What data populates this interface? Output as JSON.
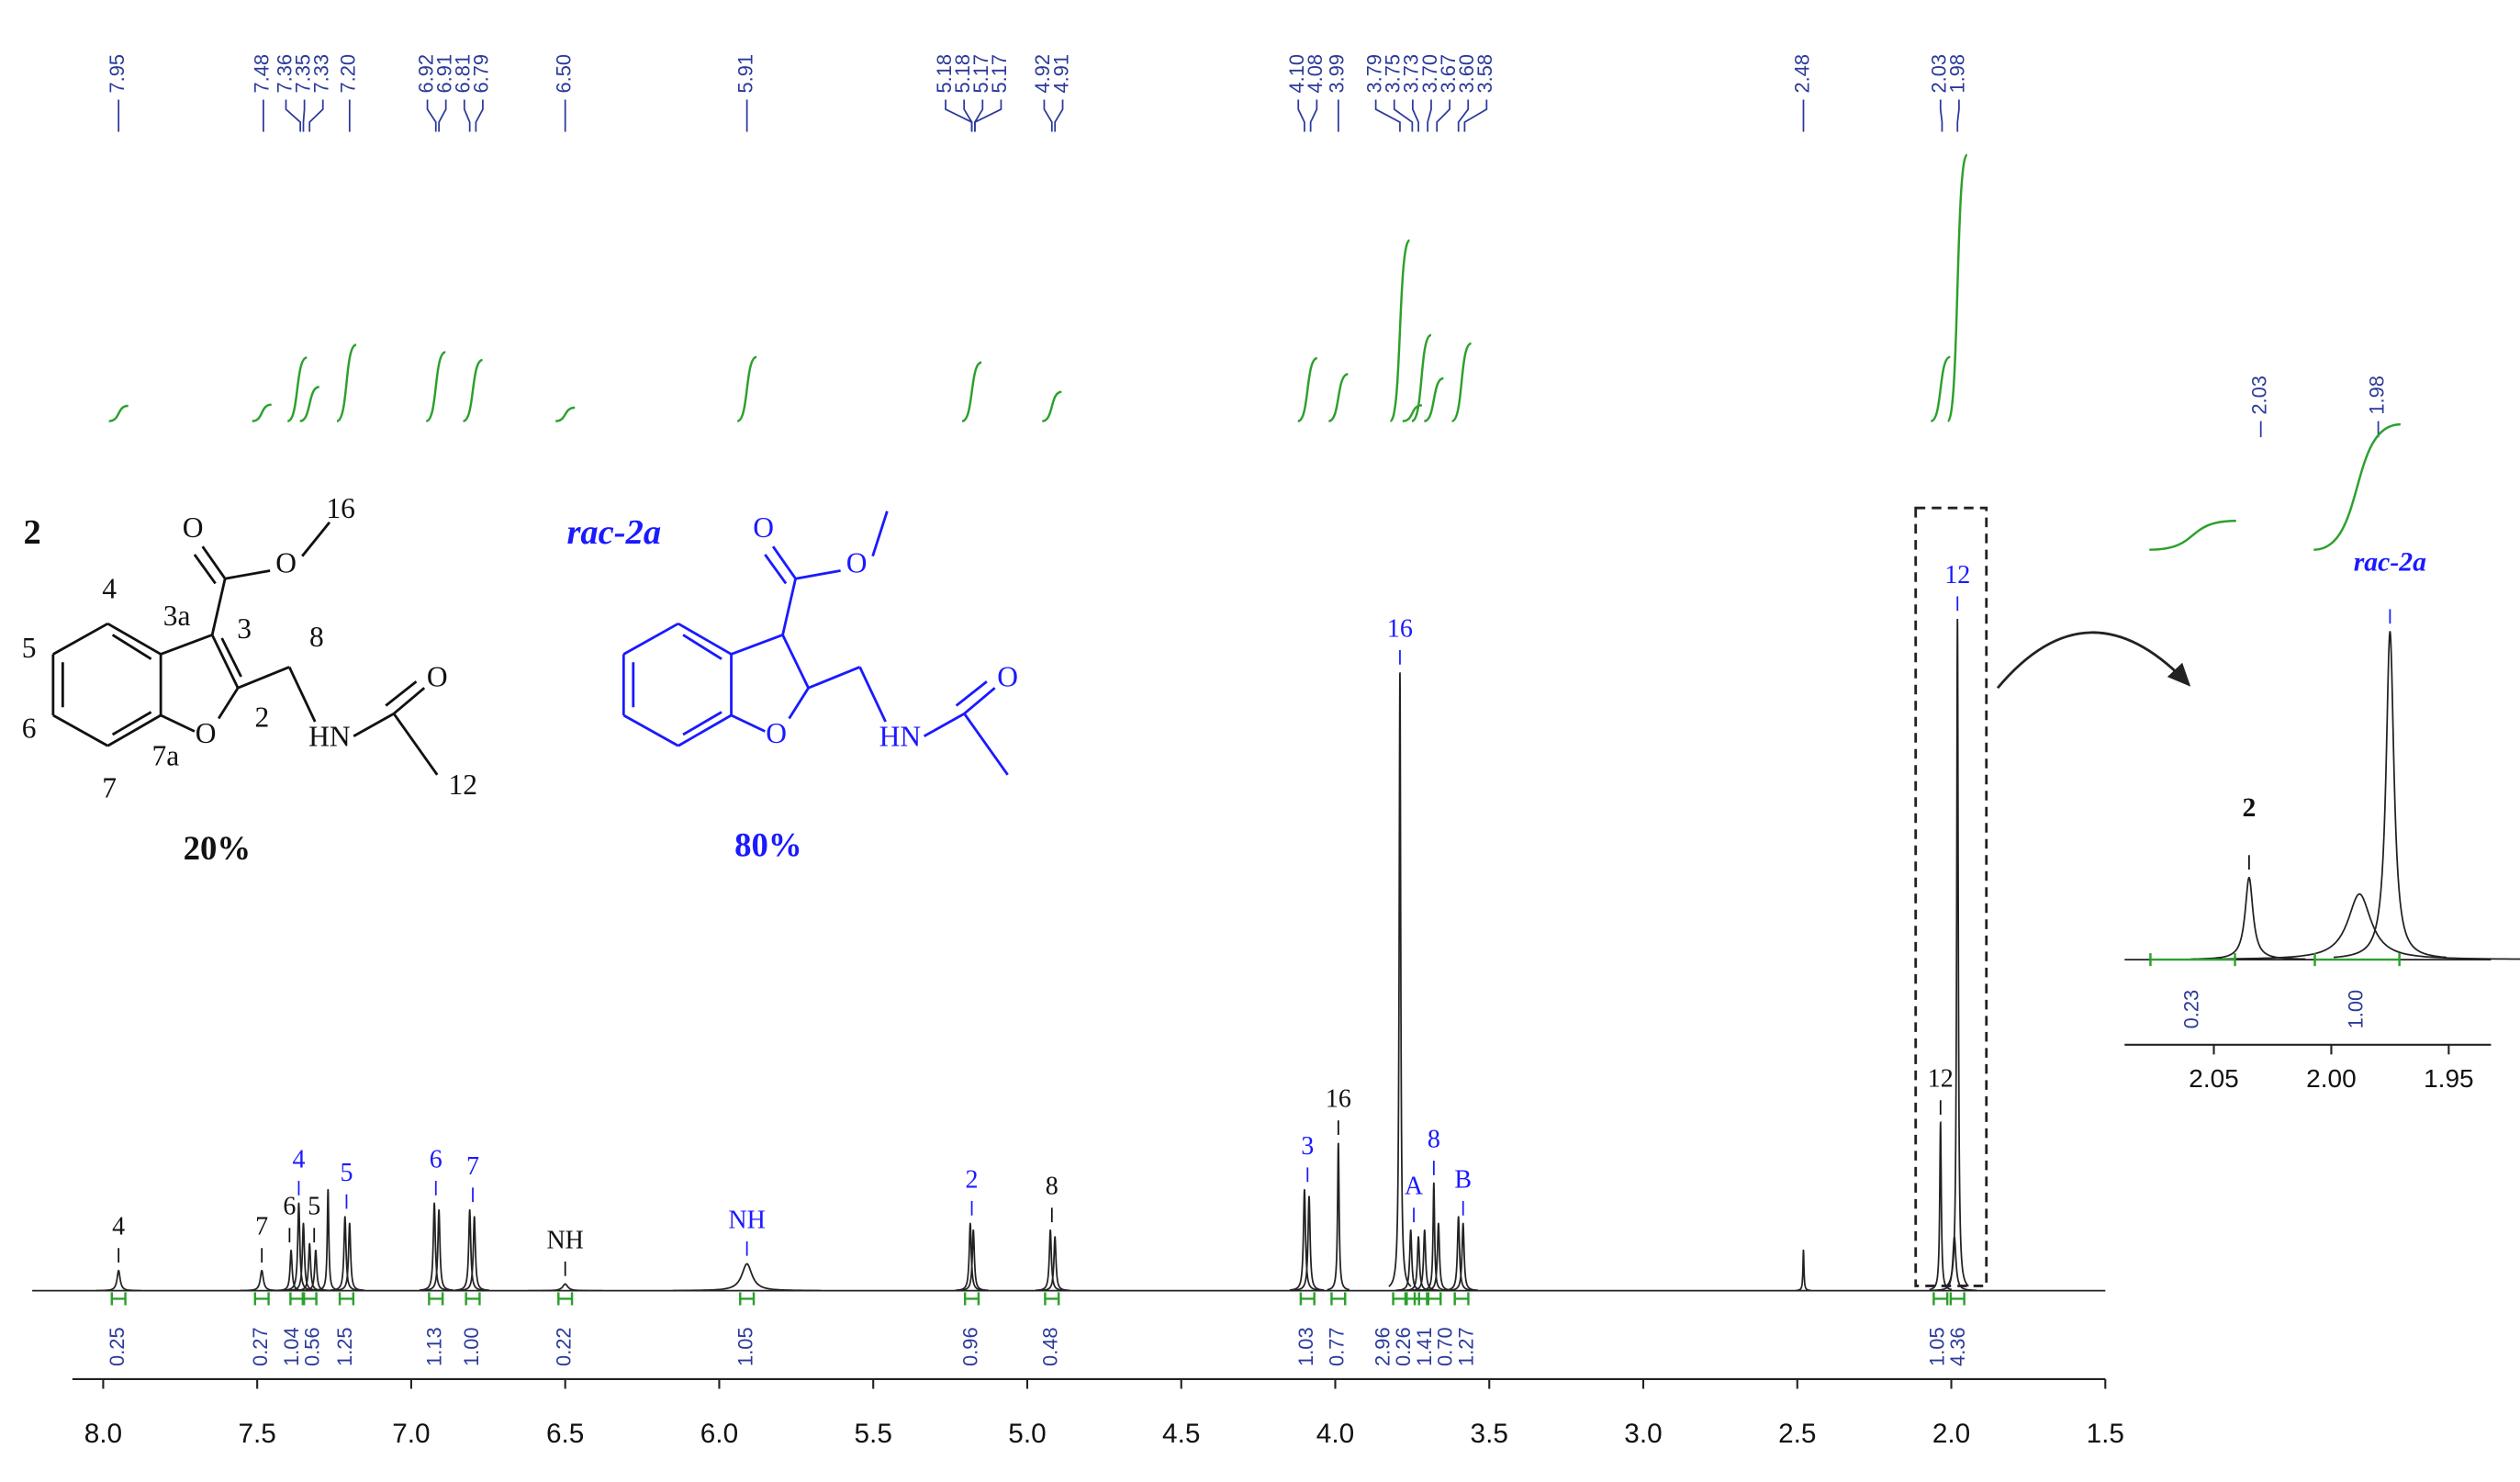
{
  "chart_data": [
    {
      "type": "spectrum",
      "xlim": [
        8.1,
        1.5
      ],
      "xticks": [
        {
          "value": 8,
          "label": "8.0"
        },
        7.5,
        {
          "value": 7,
          "label": "7.0"
        },
        6.5,
        {
          "value": 6,
          "label": "6.0"
        },
        5.5,
        {
          "value": 5,
          "label": "5.0"
        },
        4.5,
        {
          "value": 4,
          "label": "4.0"
        },
        3.5,
        {
          "value": 3,
          "label": "3.0"
        },
        2.5,
        {
          "value": 2,
          "label": "2.0"
        },
        1.5
      ],
      "ylim": [
        0,
        100
      ],
      "color": "#222222",
      "integral_color": "#2ca02c",
      "label_color": "#2b3a99",
      "x": [
        7.95,
        7.485,
        7.39,
        7.365,
        7.35,
        7.33,
        7.31,
        7.27,
        7.215,
        7.2,
        6.925,
        6.91,
        6.81,
        6.795,
        6.5,
        5.91,
        5.185,
        5.175,
        4.925,
        4.91,
        4.1,
        4.085,
        3.99,
        3.79,
        3.755,
        3.73,
        3.71,
        3.68,
        3.665,
        3.6,
        3.585,
        2.48,
        2.035,
        1.99,
        1.98
      ],
      "values": [
        3,
        3,
        6,
        13,
        10,
        7,
        6,
        15,
        11,
        10,
        13,
        12,
        12,
        11,
        1,
        4,
        10,
        9,
        9,
        8,
        15,
        14,
        22,
        92,
        9,
        8,
        9,
        16,
        10,
        11,
        10,
        6,
        25,
        8,
        100
      ],
      "widths": [
        0.006,
        0.006,
        0.004,
        0.004,
        0.004,
        0.004,
        0.004,
        0.003,
        0.004,
        0.004,
        0.004,
        0.004,
        0.004,
        0.004,
        0.01,
        0.02,
        0.004,
        0.004,
        0.004,
        0.004,
        0.004,
        0.004,
        0.003,
        0.003,
        0.004,
        0.004,
        0.004,
        0.003,
        0.004,
        0.004,
        0.004,
        0.002,
        0.003,
        0.006,
        0.003
      ],
      "shift_labels": [
        7.95,
        7.48,
        7.36,
        7.35,
        7.33,
        {
          "value": 7.2,
          "label": "7.20"
        },
        6.92,
        6.91,
        6.81,
        6.79,
        {
          "value": 6.5,
          "label": "6.50"
        },
        5.91,
        5.18,
        5.18,
        5.17,
        5.17,
        4.92,
        4.91,
        {
          "value": 4.1,
          "label": "4.10"
        },
        4.08,
        3.99,
        3.79,
        3.75,
        3.73,
        {
          "value": 3.7,
          "label": "3.70"
        },
        3.67,
        {
          "value": 3.6,
          "label": "3.60"
        },
        3.58,
        2.48,
        2.03,
        1.98
      ],
      "integrals": {
        "x": [
          7.95,
          7.485,
          7.37,
          7.33,
          7.21,
          6.92,
          6.8,
          6.5,
          5.91,
          5.18,
          4.92,
          4.09,
          3.99,
          3.79,
          3.75,
          3.72,
          3.68,
          3.59,
          2.035,
          1.98
        ],
        "values": [
          0.25,
          0.27,
          1.04,
          0.56,
          1.25,
          1.13,
          1.0,
          0.22,
          1.05,
          0.96,
          0.48,
          1.03,
          0.77,
          2.96,
          0.26,
          1.41,
          0.7,
          1.27,
          1.05,
          4.36
        ],
        "value_labels": [
          "0.25",
          "0.27",
          "1.04",
          "0.56",
          "1.25",
          "1.13",
          "1.00",
          "0.22",
          "1.05",
          "0.96",
          "0.48",
          "1.03",
          "0.77",
          "2.96",
          "0.26",
          "1.41",
          "0.70",
          "1.27",
          "1.05",
          "4.36"
        ]
      },
      "annotations": [
        {
          "text": "4",
          "x": 7.95,
          "color": "#111111"
        },
        {
          "text": "7",
          "x": 7.485,
          "color": "#111111"
        },
        {
          "text": "6",
          "x": 7.395,
          "color": "#111111"
        },
        {
          "text": "5",
          "x": 7.315,
          "color": "#111111"
        },
        {
          "text": "4",
          "x": 7.365,
          "color": "#1a1aff"
        },
        {
          "text": "5",
          "x": 7.21,
          "color": "#1a1aff"
        },
        {
          "text": "6",
          "x": 6.92,
          "color": "#1a1aff"
        },
        {
          "text": "7",
          "x": 6.8,
          "color": "#1a1aff"
        },
        {
          "text": "NH",
          "x": 6.5,
          "color": "#111111"
        },
        {
          "text": "NH",
          "x": 5.91,
          "color": "#1a1aff"
        },
        {
          "text": "2",
          "x": 5.18,
          "color": "#1a1aff"
        },
        {
          "text": "8",
          "x": 4.92,
          "color": "#111111"
        },
        {
          "text": "3",
          "x": 4.09,
          "color": "#1a1aff"
        },
        {
          "text": "16",
          "x": 3.99,
          "color": "#111111"
        },
        {
          "text": "16",
          "x": 3.79,
          "color": "#1a1aff"
        },
        {
          "text": "A",
          "x": 3.745,
          "color": "#1a1aff"
        },
        {
          "text": "8",
          "x": 3.68,
          "color": "#1a1aff"
        },
        {
          "text": "B",
          "x": 3.585,
          "color": "#1a1aff"
        },
        {
          "text": "12",
          "x": 2.035,
          "color": "#111111"
        },
        {
          "text": "12",
          "x": 1.98,
          "color": "#1a1aff"
        }
      ]
    },
    {
      "type": "spectrum",
      "xlim": [
        2.088,
        1.932
      ],
      "xticks": [
        2.05,
        {
          "value": 2,
          "label": "2.00"
        },
        1.95
      ],
      "ylim": [
        0,
        100
      ],
      "color": "#222222",
      "integral_color": "#2ca02c",
      "label_color": "#2b3a99",
      "x": [
        2.035,
        1.988,
        1.975
      ],
      "values": [
        25,
        20,
        100
      ],
      "widths": [
        0.002,
        0.006,
        0.002
      ],
      "shift_labels": [
        2.03,
        1.98
      ],
      "integrals": {
        "x": [
          2.059,
          1.989
        ],
        "values": [
          0.23,
          1.0
        ],
        "value_labels": [
          "0.23",
          "1.00"
        ]
      },
      "annotations": [
        {
          "text": "2",
          "x": 2.035,
          "color": "#111111",
          "style": "bold"
        },
        {
          "text": "rac-2a",
          "x": 1.975,
          "color": "#1a1aff",
          "style": "bold-italic"
        }
      ]
    }
  ],
  "structures": [
    {
      "label": "2",
      "yield": "20%",
      "color": "#111111",
      "atoms": [
        "O",
        "O",
        "16",
        "4",
        "3a",
        "3",
        "5",
        "8",
        "6",
        "2",
        "O",
        "HN",
        "O",
        "7a",
        "7",
        "12"
      ]
    },
    {
      "label": "rac-2a",
      "yield": "80%",
      "color": "#1a1aff",
      "atoms": [
        "O",
        "O",
        "O",
        "HN",
        "O"
      ]
    }
  ]
}
